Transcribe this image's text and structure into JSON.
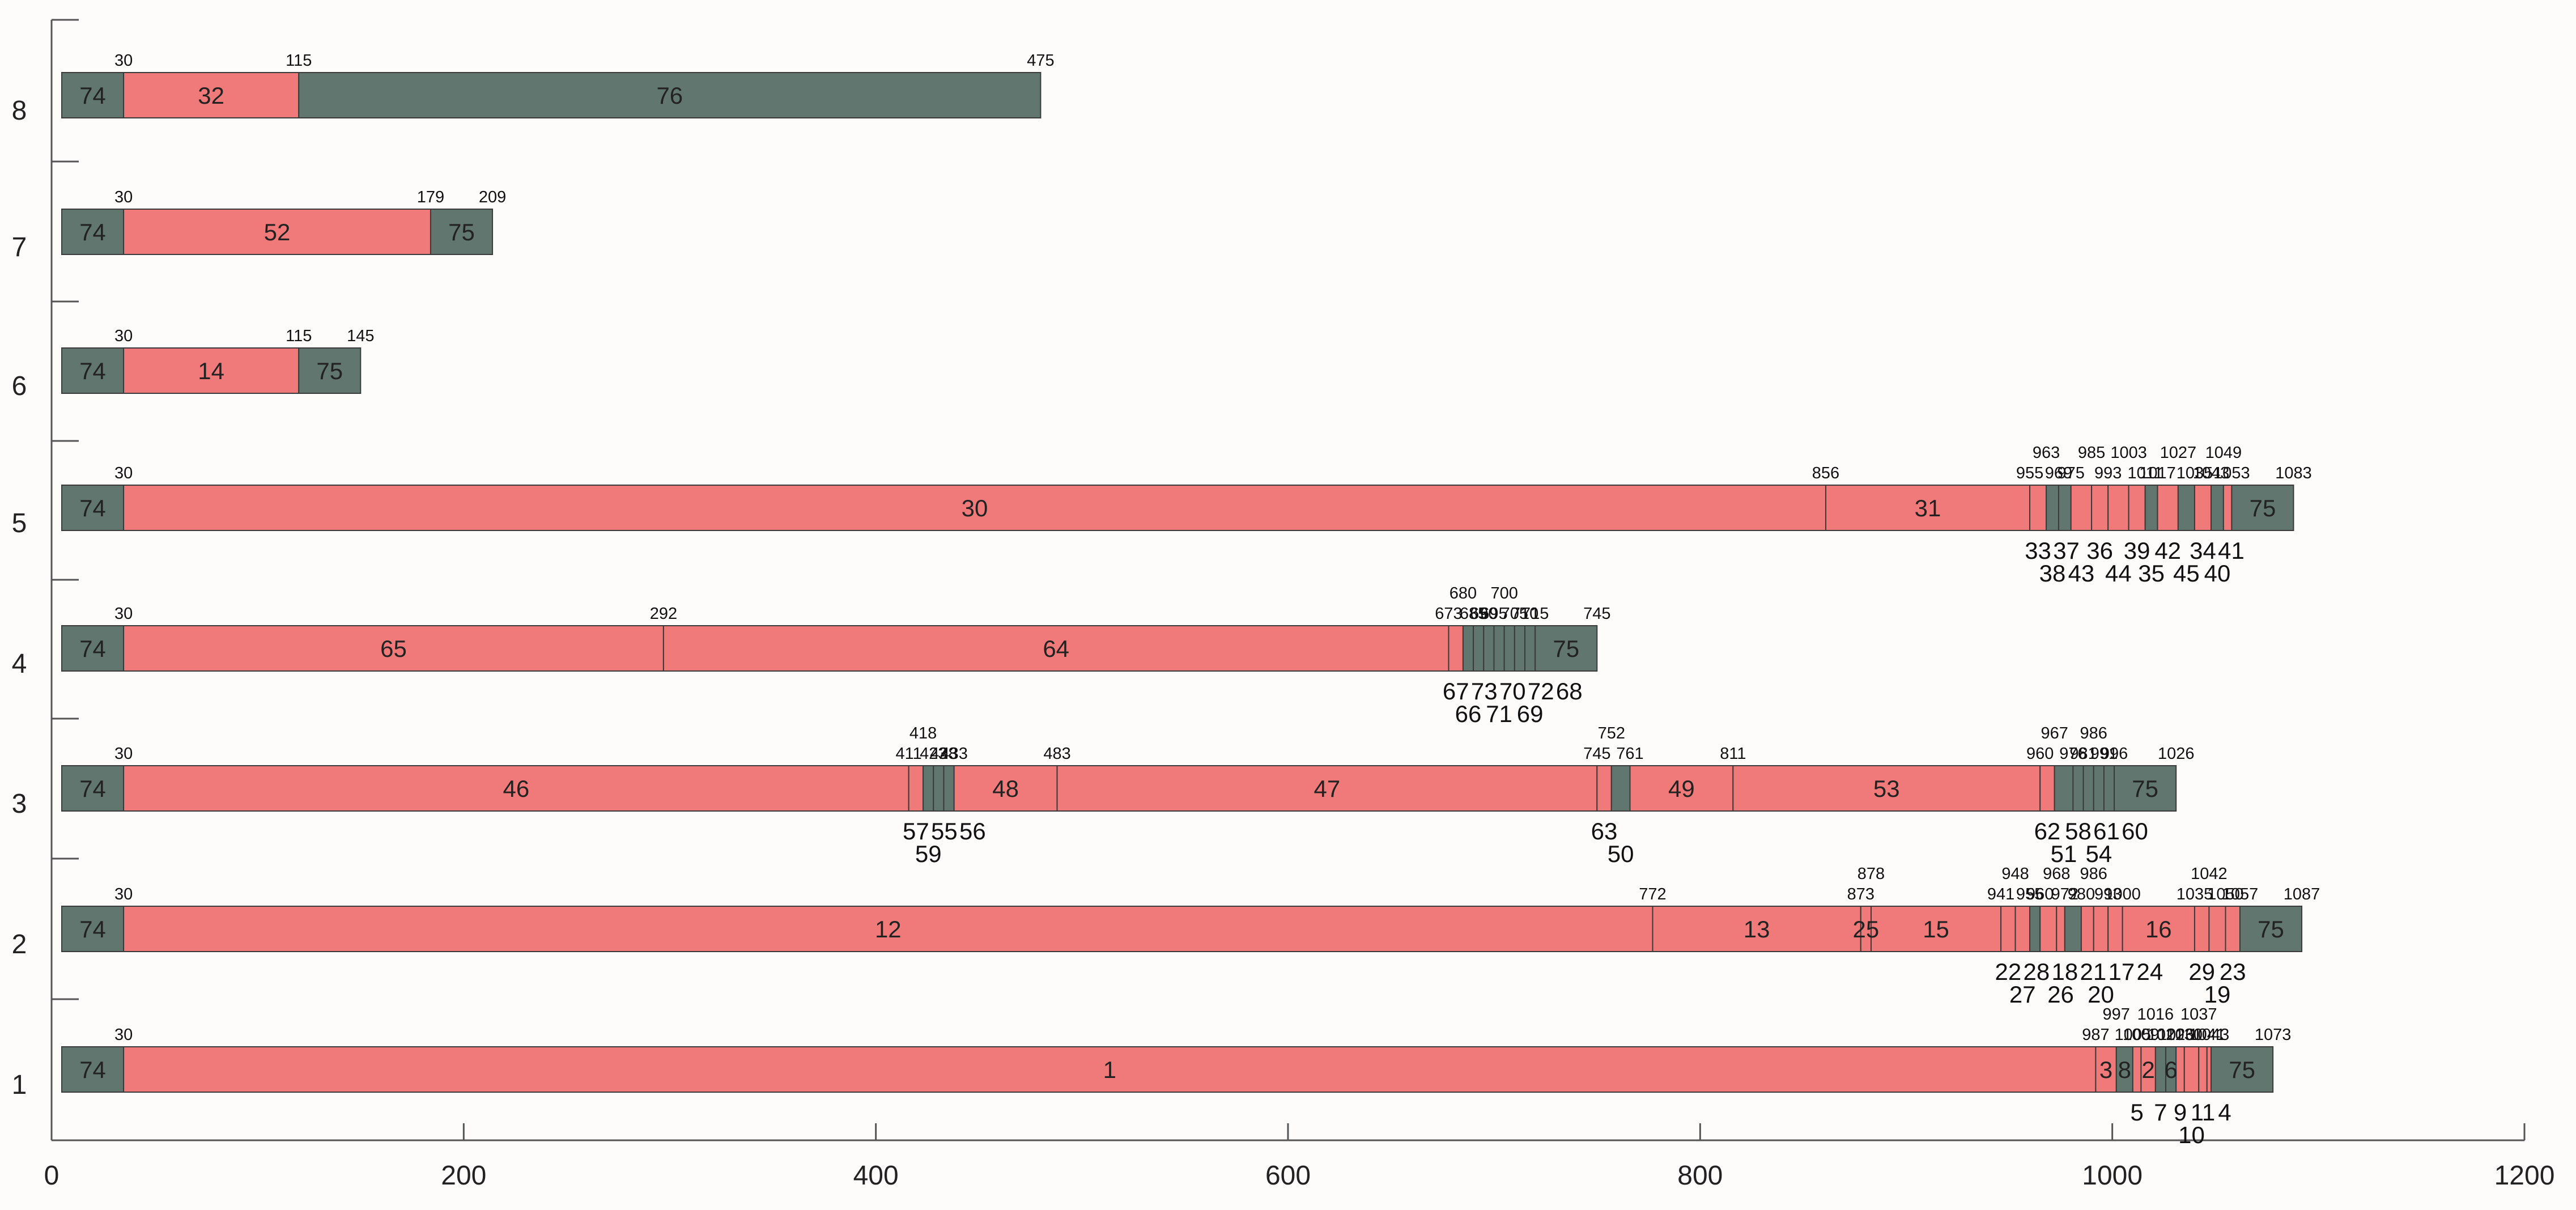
{
  "chart_data": {
    "type": "gantt",
    "title": "",
    "xlabel": "",
    "ylabel": "",
    "xlim": [
      0,
      1200
    ],
    "x_ticks": [
      "0",
      "200",
      "400",
      "600",
      "800",
      "1000",
      "1200"
    ],
    "y_categories": [
      "1",
      "2",
      "3",
      "4",
      "5",
      "6",
      "7",
      "8"
    ],
    "colors": {
      "gray": "#627670",
      "red": "#f07a79",
      "background": "#fdfcfa"
    },
    "rows": [
      {
        "row": "1",
        "segments": [
          {
            "start": 0,
            "end": 30,
            "label": "74",
            "color": "gray"
          },
          {
            "start": 30,
            "end": 987,
            "label": "1",
            "color": "red"
          },
          {
            "start": 987,
            "end": 997,
            "label": "3",
            "color": "red"
          },
          {
            "start": 997,
            "end": 1005,
            "label": "8",
            "color": "gray"
          },
          {
            "start": 1005,
            "end": 1009,
            "label": "5",
            "color": "red"
          },
          {
            "start": 1009,
            "end": 1016,
            "label": "2",
            "color": "red"
          },
          {
            "start": 1016,
            "end": 1021,
            "label": "7",
            "color": "gray"
          },
          {
            "start": 1021,
            "end": 1026,
            "label": "6",
            "color": "gray"
          },
          {
            "start": 1026,
            "end": 1030,
            "label": "9",
            "color": "red"
          },
          {
            "start": 1030,
            "end": 1037,
            "label": "10",
            "color": "red"
          },
          {
            "start": 1037,
            "end": 1041,
            "label": "11",
            "color": "red"
          },
          {
            "start": 1041,
            "end": 1043,
            "label": "4",
            "color": "red"
          },
          {
            "start": 1043,
            "end": 1073,
            "label": "75",
            "color": "gray"
          }
        ],
        "boundary_labels": [
          "30",
          "987",
          "997",
          "1005",
          "1009",
          "1016",
          "1021",
          "1026",
          "1030",
          "1037",
          "1041",
          "1043",
          "1073"
        ],
        "inside_labels": [
          "74",
          "1",
          "3",
          "8",
          "2",
          "6",
          "75"
        ],
        "below_labels": [
          "5",
          "7",
          "9",
          "10",
          "11",
          "4"
        ]
      },
      {
        "row": "2",
        "segments": [
          {
            "start": 0,
            "end": 30,
            "label": "74",
            "color": "gray"
          },
          {
            "start": 30,
            "end": 772,
            "label": "12",
            "color": "red"
          },
          {
            "start": 772,
            "end": 873,
            "label": "13",
            "color": "red"
          },
          {
            "start": 873,
            "end": 878,
            "label": "25",
            "color": "red"
          },
          {
            "start": 878,
            "end": 941,
            "label": "15",
            "color": "red"
          },
          {
            "start": 941,
            "end": 948,
            "label": "22",
            "color": "red"
          },
          {
            "start": 948,
            "end": 955,
            "label": "27",
            "color": "red"
          },
          {
            "start": 955,
            "end": 960,
            "label": "28",
            "color": "gray"
          },
          {
            "start": 960,
            "end": 968,
            "label": "18",
            "color": "red"
          },
          {
            "start": 968,
            "end": 972,
            "label": "26",
            "color": "red"
          },
          {
            "start": 972,
            "end": 980,
            "label": "21",
            "color": "gray"
          },
          {
            "start": 980,
            "end": 986,
            "label": "17",
            "color": "red"
          },
          {
            "start": 986,
            "end": 993,
            "label": "20",
            "color": "red"
          },
          {
            "start": 993,
            "end": 1000,
            "label": "24",
            "color": "red"
          },
          {
            "start": 1000,
            "end": 1035,
            "label": "16",
            "color": "red"
          },
          {
            "start": 1035,
            "end": 1042,
            "label": "29",
            "color": "red"
          },
          {
            "start": 1042,
            "end": 1050,
            "label": "19",
            "color": "red"
          },
          {
            "start": 1050,
            "end": 1057,
            "label": "23",
            "color": "red"
          },
          {
            "start": 1057,
            "end": 1087,
            "label": "75",
            "color": "gray"
          }
        ],
        "boundary_labels": [
          "30",
          "772",
          "873",
          "878",
          "941",
          "948",
          "955",
          "960",
          "968",
          "972",
          "980",
          "986",
          "993",
          "1000",
          "1035",
          "1042",
          "1050",
          "1057",
          "1087"
        ],
        "inside_labels": [
          "74",
          "12",
          "13",
          "25",
          "15",
          "16",
          "75"
        ],
        "below_labels": [
          "22",
          "27",
          "18",
          "21",
          "17",
          "24",
          "28",
          "26",
          "20",
          "29",
          "19",
          "23"
        ]
      },
      {
        "row": "3",
        "segments": [
          {
            "start": 0,
            "end": 30,
            "label": "74",
            "color": "gray"
          },
          {
            "start": 30,
            "end": 411,
            "label": "46",
            "color": "red"
          },
          {
            "start": 411,
            "end": 418,
            "label": "57",
            "color": "red"
          },
          {
            "start": 418,
            "end": 423,
            "label": "59",
            "color": "gray"
          },
          {
            "start": 423,
            "end": 428,
            "label": "55",
            "color": "gray"
          },
          {
            "start": 428,
            "end": 433,
            "label": "56",
            "color": "gray"
          },
          {
            "start": 433,
            "end": 483,
            "label": "48",
            "color": "red"
          },
          {
            "start": 483,
            "end": 745,
            "label": "47",
            "color": "red"
          },
          {
            "start": 745,
            "end": 752,
            "label": "63",
            "color": "red"
          },
          {
            "start": 752,
            "end": 761,
            "label": "50",
            "color": "gray"
          },
          {
            "start": 761,
            "end": 811,
            "label": "49",
            "color": "red"
          },
          {
            "start": 811,
            "end": 960,
            "label": "53",
            "color": "red"
          },
          {
            "start": 960,
            "end": 967,
            "label": "62",
            "color": "red"
          },
          {
            "start": 967,
            "end": 976,
            "label": "51",
            "color": "gray"
          },
          {
            "start": 976,
            "end": 981,
            "label": "58",
            "color": "gray"
          },
          {
            "start": 981,
            "end": 986,
            "label": "61",
            "color": "gray"
          },
          {
            "start": 986,
            "end": 991,
            "label": "54",
            "color": "gray"
          },
          {
            "start": 991,
            "end": 996,
            "label": "60",
            "color": "gray"
          },
          {
            "start": 996,
            "end": 1026,
            "label": "75",
            "color": "gray"
          }
        ],
        "boundary_labels": [
          "30",
          "411",
          "418",
          "423",
          "428",
          "433",
          "483",
          "745",
          "752",
          "761",
          "811",
          "960",
          "967",
          "976",
          "981",
          "986",
          "991",
          "996",
          "1026"
        ],
        "inside_labels": [
          "74",
          "46",
          "48",
          "47",
          "49",
          "53",
          "75"
        ],
        "below_labels": [
          "57",
          "59",
          "56",
          "55",
          "63",
          "50",
          "62",
          "51",
          "61",
          "60",
          "58",
          "54"
        ]
      },
      {
        "row": "4",
        "segments": [
          {
            "start": 0,
            "end": 30,
            "label": "74",
            "color": "gray"
          },
          {
            "start": 30,
            "end": 292,
            "label": "65",
            "color": "red"
          },
          {
            "start": 292,
            "end": 673,
            "label": "64",
            "color": "red"
          },
          {
            "start": 673,
            "end": 680,
            "label": "67",
            "color": "red"
          },
          {
            "start": 680,
            "end": 685,
            "label": "66",
            "color": "gray"
          },
          {
            "start": 685,
            "end": 690,
            "label": "73",
            "color": "gray"
          },
          {
            "start": 690,
            "end": 695,
            "label": "70",
            "color": "gray"
          },
          {
            "start": 695,
            "end": 700,
            "label": "71",
            "color": "gray"
          },
          {
            "start": 700,
            "end": 705,
            "label": "72",
            "color": "gray"
          },
          {
            "start": 705,
            "end": 710,
            "label": "68",
            "color": "gray"
          },
          {
            "start": 710,
            "end": 715,
            "label": "69",
            "color": "gray"
          },
          {
            "start": 715,
            "end": 745,
            "label": "75",
            "color": "gray"
          }
        ],
        "boundary_labels": [
          "30",
          "292",
          "673",
          "680",
          "685",
          "690",
          "695",
          "700",
          "705",
          "710",
          "715",
          "745"
        ],
        "inside_labels": [
          "74",
          "65",
          "64",
          "75"
        ],
        "below_labels": [
          "67",
          "66",
          "70",
          "72",
          "69",
          "73",
          "71",
          "68"
        ]
      },
      {
        "row": "5",
        "segments": [
          {
            "start": 0,
            "end": 30,
            "label": "74",
            "color": "gray"
          },
          {
            "start": 30,
            "end": 856,
            "label": "30",
            "color": "red"
          },
          {
            "start": 856,
            "end": 955,
            "label": "31",
            "color": "red"
          },
          {
            "start": 955,
            "end": 963,
            "label": "33",
            "color": "red"
          },
          {
            "start": 963,
            "end": 969,
            "label": "38",
            "color": "gray"
          },
          {
            "start": 969,
            "end": 975,
            "label": "37",
            "color": "gray"
          },
          {
            "start": 975,
            "end": 985,
            "label": "43",
            "color": "red"
          },
          {
            "start": 985,
            "end": 993,
            "label": "36",
            "color": "red"
          },
          {
            "start": 993,
            "end": 1003,
            "label": "44",
            "color": "red"
          },
          {
            "start": 1003,
            "end": 1011,
            "label": "39",
            "color": "red"
          },
          {
            "start": 1011,
            "end": 1017,
            "label": "35",
            "color": "gray"
          },
          {
            "start": 1017,
            "end": 1027,
            "label": "42",
            "color": "red"
          },
          {
            "start": 1027,
            "end": 1035,
            "label": "45",
            "color": "gray"
          },
          {
            "start": 1035,
            "end": 1043,
            "label": "34",
            "color": "red"
          },
          {
            "start": 1043,
            "end": 1049,
            "label": "40",
            "color": "gray"
          },
          {
            "start": 1049,
            "end": 1053,
            "label": "41",
            "color": "red"
          },
          {
            "start": 1053,
            "end": 1083,
            "label": "75",
            "color": "gray"
          }
        ],
        "boundary_labels": [
          "30",
          "856",
          "955",
          "963",
          "969",
          "975",
          "985",
          "993",
          "1003",
          "1011",
          "1017",
          "1027",
          "1035",
          "1043",
          "1049",
          "1053",
          "1083"
        ],
        "inside_labels": [
          "74",
          "30",
          "31",
          "75"
        ],
        "below_labels": [
          "33",
          "38",
          "43",
          "36",
          "39",
          "42",
          "45",
          "40",
          "41",
          "37",
          "44",
          "35",
          "34"
        ]
      },
      {
        "row": "6",
        "segments": [
          {
            "start": 0,
            "end": 30,
            "label": "74",
            "color": "gray"
          },
          {
            "start": 30,
            "end": 115,
            "label": "14",
            "color": "red"
          },
          {
            "start": 115,
            "end": 145,
            "label": "75",
            "color": "gray"
          }
        ],
        "boundary_labels": [
          "30",
          "115",
          "145"
        ],
        "inside_labels": [
          "74",
          "14",
          "75"
        ],
        "below_labels": []
      },
      {
        "row": "7",
        "segments": [
          {
            "start": 0,
            "end": 30,
            "label": "74",
            "color": "gray"
          },
          {
            "start": 30,
            "end": 179,
            "label": "52",
            "color": "red"
          },
          {
            "start": 179,
            "end": 209,
            "label": "75",
            "color": "gray"
          }
        ],
        "boundary_labels": [
          "30",
          "179",
          "209"
        ],
        "inside_labels": [
          "74",
          "52",
          "75"
        ],
        "below_labels": []
      },
      {
        "row": "8",
        "segments": [
          {
            "start": 0,
            "end": 30,
            "label": "74",
            "color": "gray"
          },
          {
            "start": 30,
            "end": 115,
            "label": "32",
            "color": "red"
          },
          {
            "start": 115,
            "end": 475,
            "label": "76",
            "color": "gray"
          }
        ],
        "boundary_labels": [
          "30",
          "115",
          "475"
        ],
        "inside_labels": [
          "74",
          "32",
          "76"
        ],
        "below_labels": []
      }
    ]
  }
}
